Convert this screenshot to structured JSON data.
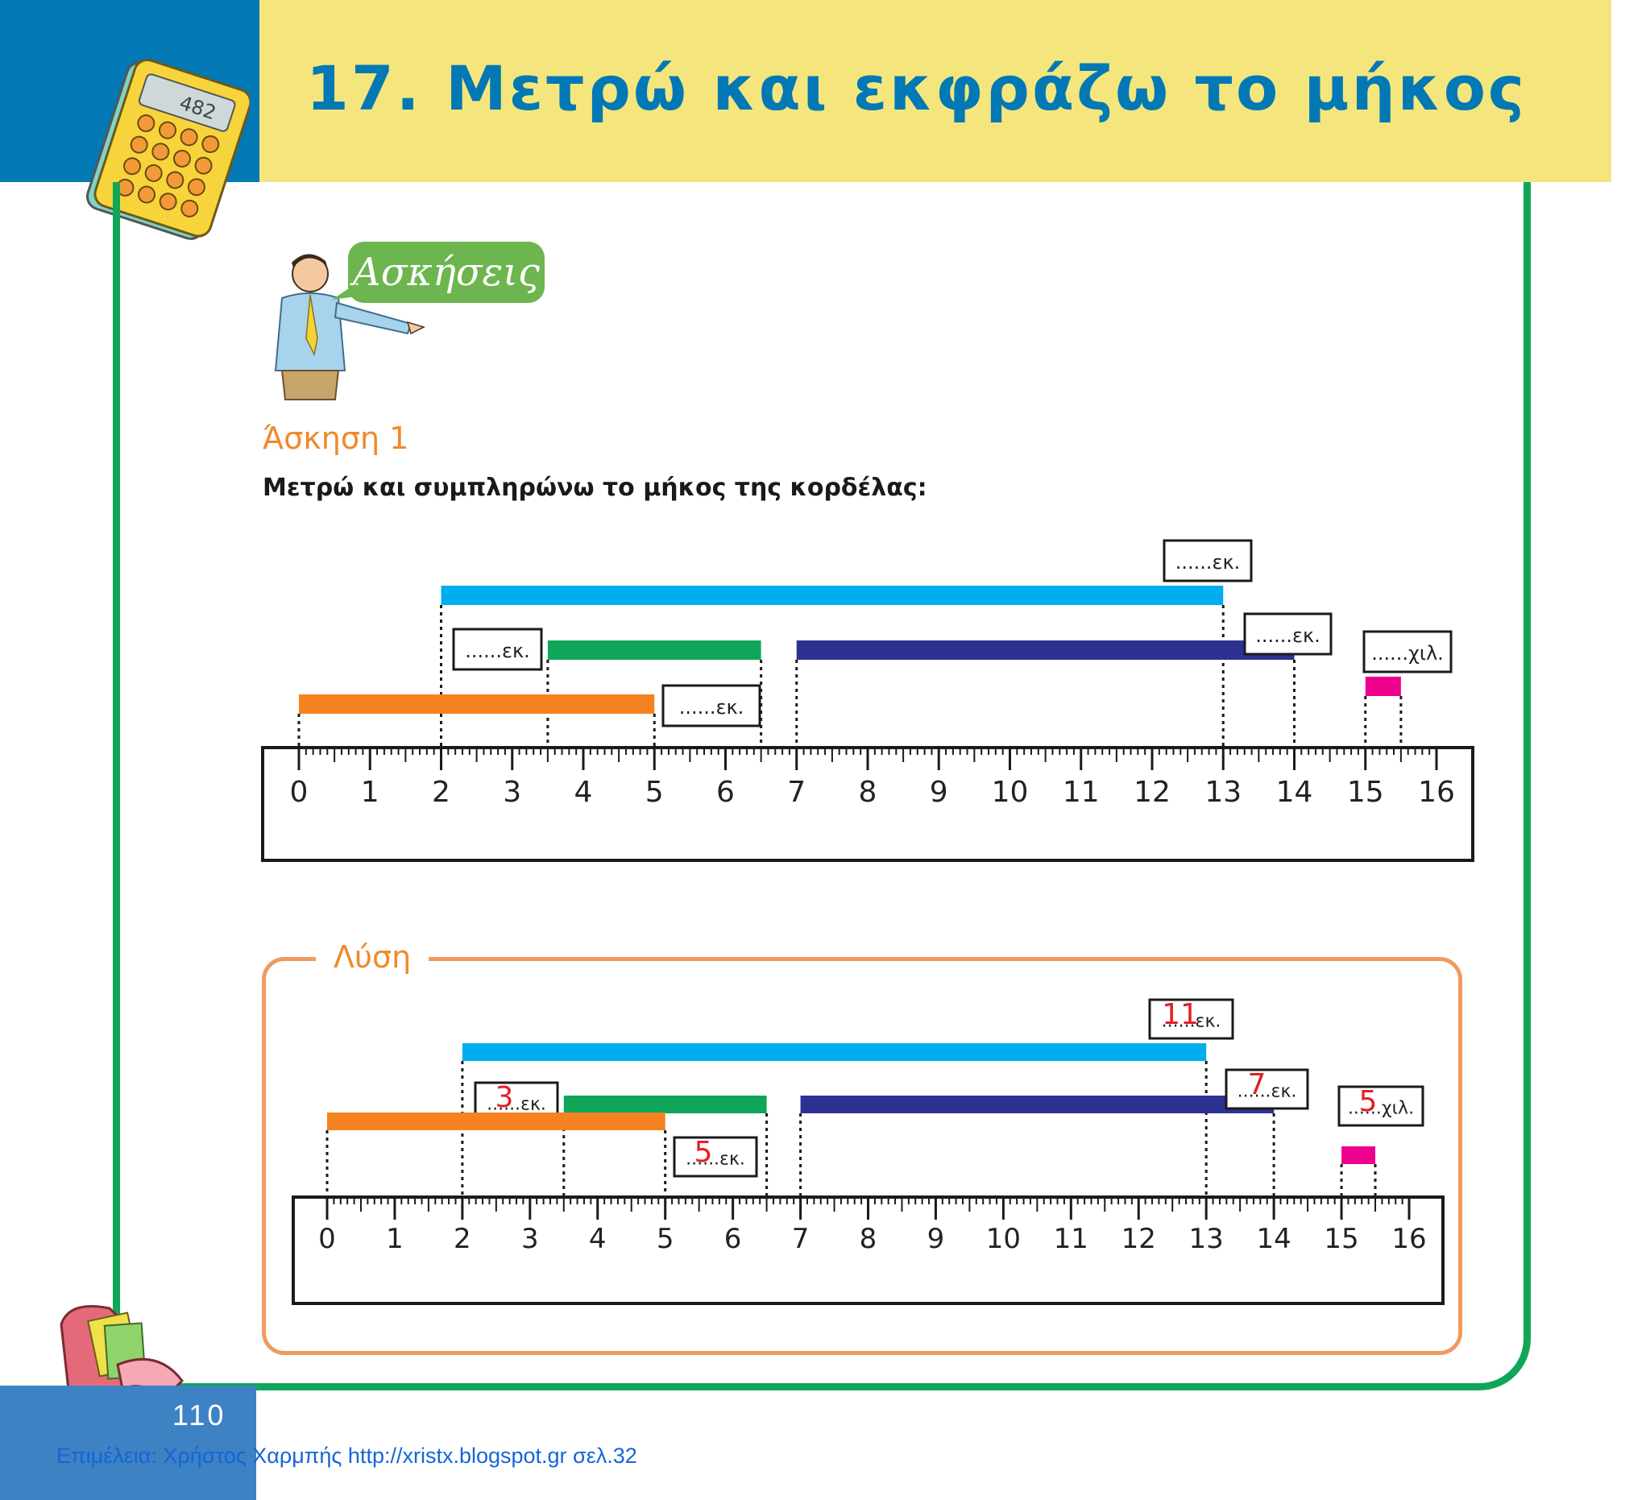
{
  "header": {
    "chapter_title": "17. Μετρώ και εκφράζω το μήκος",
    "calculator_display": "482"
  },
  "exercises_badge": "Ασκήσεις",
  "exercise": {
    "heading": "Άσκηση 1",
    "instruction": "Μετρώ και συμπληρώνω το μήκος της κορδέλας:"
  },
  "ruler": {
    "min": 0,
    "max": 16,
    "labels": [
      "0",
      "1",
      "2",
      "3",
      "4",
      "5",
      "6",
      "7",
      "8",
      "9",
      "10",
      "11",
      "12",
      "13",
      "14",
      "15",
      "16"
    ]
  },
  "ribbons": [
    {
      "id": "light-blue",
      "color": "#00aeef",
      "start": 2,
      "end": 13,
      "row": 0
    },
    {
      "id": "green",
      "color": "#0fa65a",
      "start": 3.5,
      "end": 6.5,
      "row": 1
    },
    {
      "id": "navy",
      "color": "#2e3192",
      "start": 7,
      "end": 14,
      "row": 1
    },
    {
      "id": "orange",
      "color": "#f58220",
      "start": 0,
      "end": 5,
      "row": 2
    },
    {
      "id": "pink",
      "color": "#ec008c",
      "start": 15,
      "end": 15.5,
      "row": 3
    }
  ],
  "answer_boxes": [
    {
      "ribbon": "light-blue",
      "text": "......εκ.",
      "answer": "11"
    },
    {
      "ribbon": "green",
      "text": "......εκ.",
      "answer": "3"
    },
    {
      "ribbon": "navy",
      "text": "......εκ.",
      "answer": "7"
    },
    {
      "ribbon": "orange",
      "text": "......εκ.",
      "answer": "5"
    },
    {
      "ribbon": "pink",
      "text": "......χιλ.",
      "answer": "5"
    }
  ],
  "solution": {
    "label": "Λύση"
  },
  "footer": {
    "page_number": "110",
    "credit": "Επιμέλεια: Χρήστος Χαρμπής  http://xristx.blogspot.gr σελ.32"
  },
  "colors": {
    "header_blue": "#0278b5",
    "header_yellow": "#f4e67c",
    "frame_green": "#0fa65a",
    "accent_orange": "#ef8a2b",
    "answer_red": "#e31e24"
  }
}
